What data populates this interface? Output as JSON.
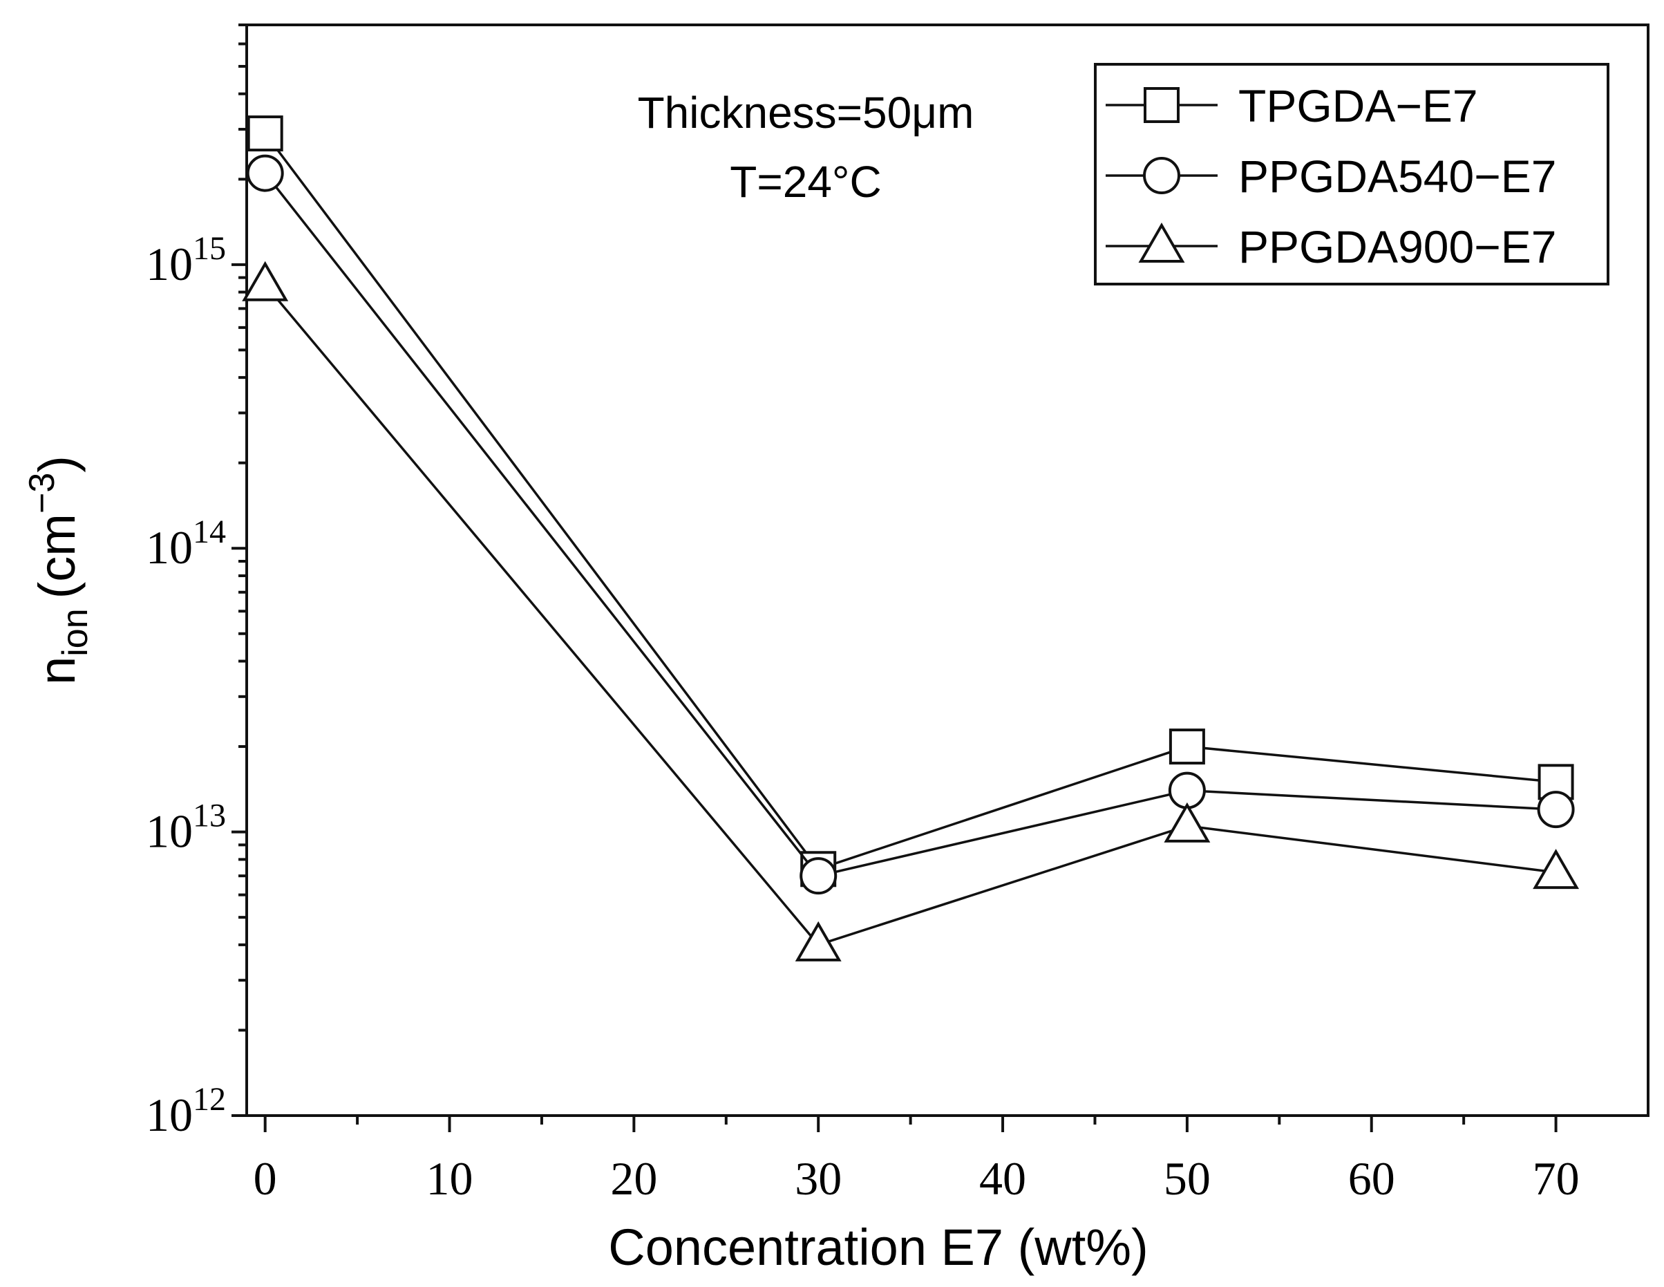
{
  "chart_data": {
    "type": "line",
    "xlabel": "Concentration E7 (wt%)",
    "ylabel_main": "n",
    "ylabel_sub": "ion",
    "ylabel_unit_open": "(cm",
    "ylabel_unit_sup": "−3",
    "ylabel_unit_close": ")",
    "y_scale": "log",
    "xlim": [
      -1,
      75
    ],
    "ylim": [
      1000000000000.0,
      7000000000000000.0
    ],
    "x_ticks": [
      0,
      10,
      20,
      30,
      40,
      50,
      60,
      70
    ],
    "x_tick_labels": [
      "0",
      "10",
      "20",
      "30",
      "40",
      "50",
      "60",
      "70"
    ],
    "y_ticks": [
      {
        "value": 1000000000000.0,
        "base": "10",
        "exp": "12"
      },
      {
        "value": 10000000000000.0,
        "base": "10",
        "exp": "13"
      },
      {
        "value": 100000000000000.0,
        "base": "10",
        "exp": "14"
      },
      {
        "value": 1000000000000000.0,
        "base": "10",
        "exp": "15"
      }
    ],
    "annotations": [
      "Thickness=50μm",
      "T=24°C"
    ],
    "legend_position": "top-right",
    "series": [
      {
        "name": "TPGDA−E7",
        "marker": "square",
        "x": [
          0,
          30,
          50,
          70
        ],
        "y": [
          2900000000000000.0,
          7400000000000.0,
          20000000000000.0,
          15000000000000.0
        ]
      },
      {
        "name": "PPGDA540−E7",
        "marker": "circle",
        "x": [
          0,
          30,
          50,
          70
        ],
        "y": [
          2100000000000000.0,
          7000000000000.0,
          14000000000000.0,
          12000000000000.0
        ]
      },
      {
        "name": "PPGDA900−E7",
        "marker": "triangle",
        "x": [
          0,
          30,
          50,
          70
        ],
        "y": [
          850000000000000.0,
          4000000000000.0,
          10500000000000.0,
          7200000000000.0
        ]
      }
    ]
  }
}
